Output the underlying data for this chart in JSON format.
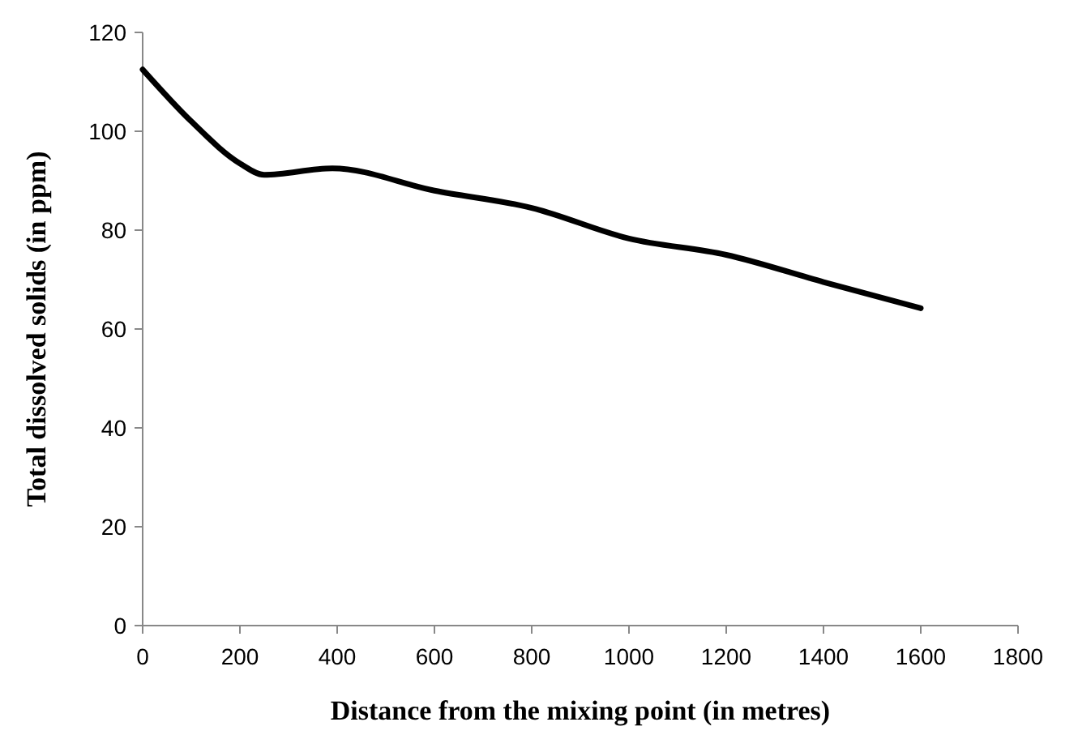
{
  "chart_data": {
    "type": "line",
    "xlabel": "Distance from the mixing point (in metres)",
    "ylabel": "Total dissolved solids (in ppm)",
    "x": [
      0,
      100,
      200,
      250,
      390,
      600,
      800,
      1000,
      1200,
      1400,
      1600
    ],
    "series": [
      {
        "color": "#000000",
        "values": [
          112.5,
          102,
          93.5,
          91.2,
          92.5,
          88,
          84.5,
          78.3,
          75,
          69.5,
          64.2
        ]
      }
    ],
    "xlim": [
      0,
      1800
    ],
    "xticks": [
      0,
      200,
      400,
      600,
      800,
      1000,
      1200,
      1400,
      1600,
      1800
    ],
    "ylim": [
      0,
      120
    ],
    "yticks": [
      0,
      20,
      40,
      60,
      80,
      100,
      120
    ],
    "marker": "none",
    "line_style": "solid"
  }
}
